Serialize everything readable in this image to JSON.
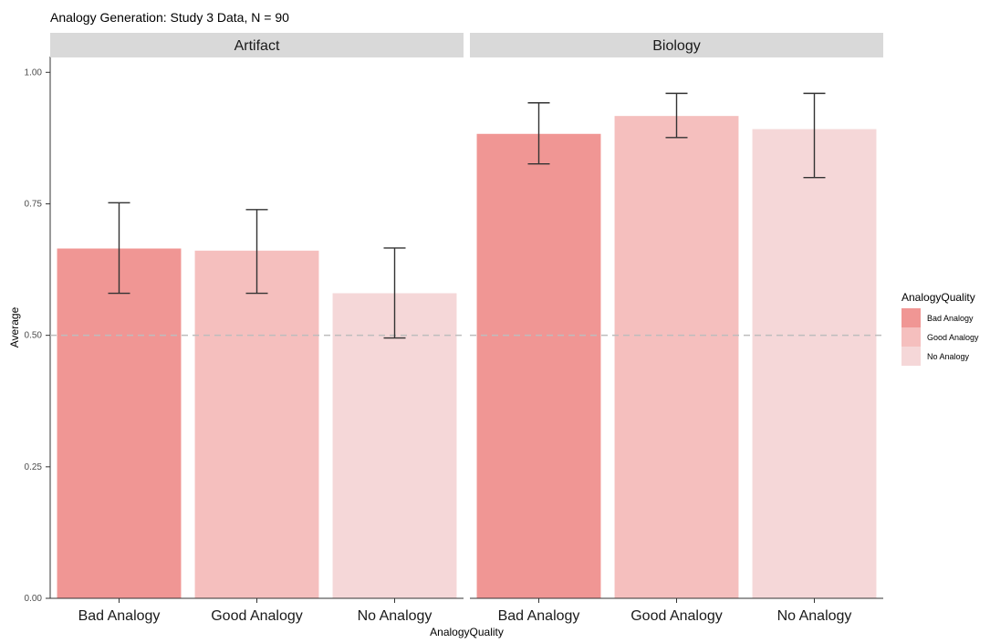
{
  "chart_data": {
    "type": "bar",
    "title": "Analogy Generation: Study 3 Data, N = 90",
    "xlabel": "AnalogyQuality",
    "ylabel": "Average",
    "ylim": [
      0,
      1.03
    ],
    "yticks": [
      "0.00",
      "0.25",
      "0.50",
      "0.75",
      "1.00"
    ],
    "ytick_values": [
      0,
      0.25,
      0.5,
      0.75,
      1.0
    ],
    "reference_line": 0.5,
    "grid": false,
    "categories": [
      "Bad Analogy",
      "Good Analogy",
      "No Analogy"
    ],
    "facets": [
      {
        "label": "Artifact",
        "values": [
          0.665,
          0.661,
          0.58
        ],
        "err_low": [
          0.58,
          0.58,
          0.495
        ],
        "err_high": [
          0.752,
          0.739,
          0.666
        ]
      },
      {
        "label": "Biology",
        "values": [
          0.883,
          0.917,
          0.892
        ],
        "err_low": [
          0.826,
          0.876,
          0.8
        ],
        "err_high": [
          0.942,
          0.96,
          0.96
        ]
      }
    ],
    "legend": {
      "title": "AnalogyQuality",
      "position": "right",
      "items": [
        "Bad Analogy",
        "Good Analogy",
        "No Analogy"
      ]
    },
    "colors": [
      "#f09694",
      "#f5bfbe",
      "#f5d7d8"
    ]
  }
}
